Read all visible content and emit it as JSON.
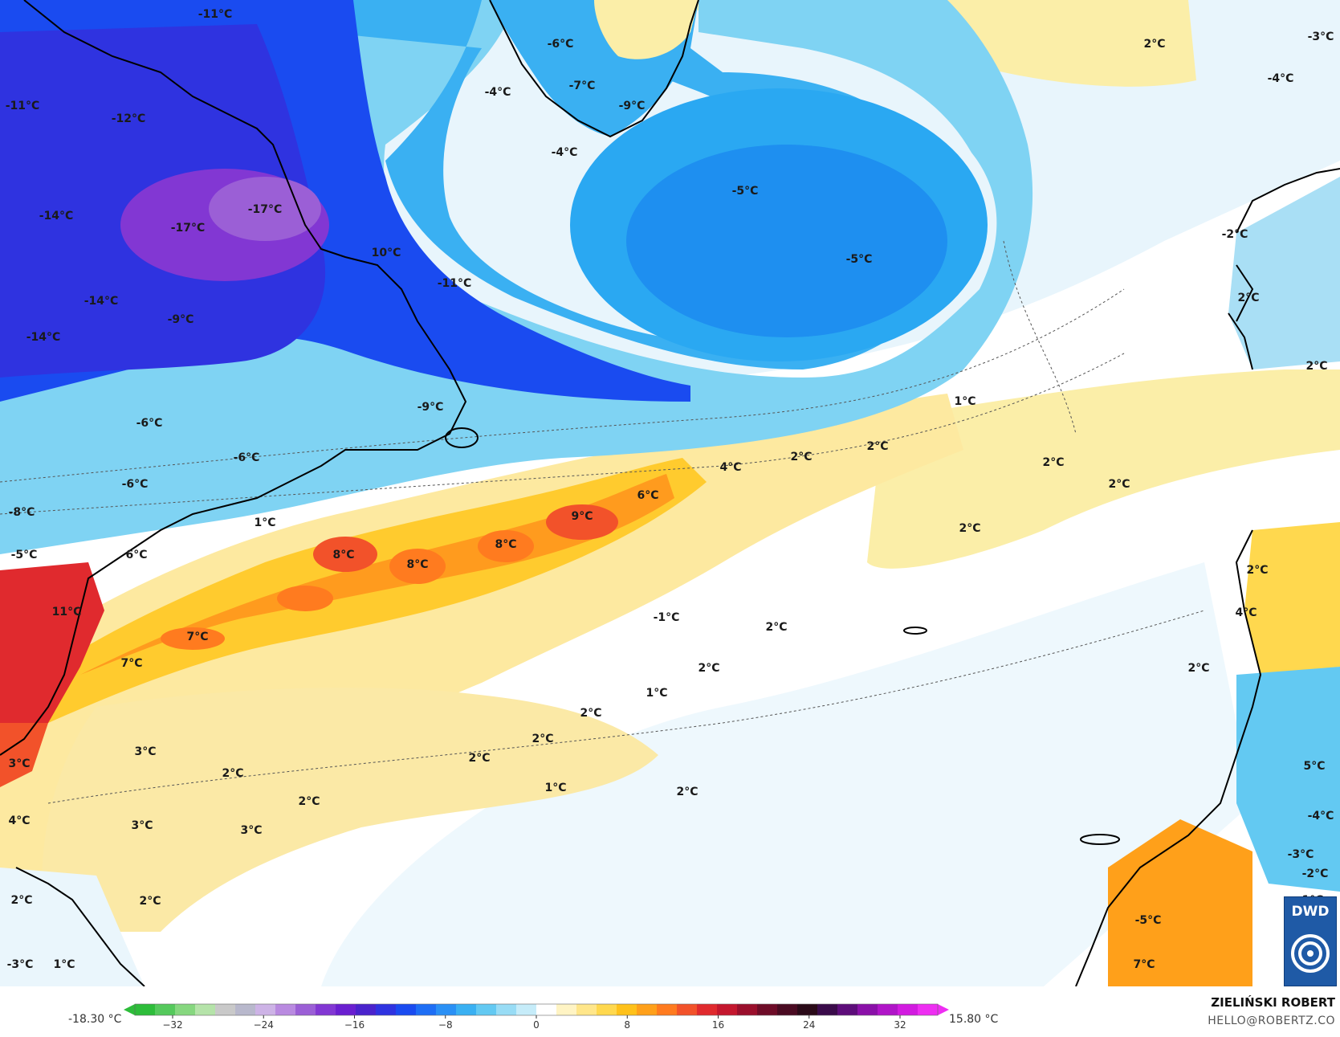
{
  "map": {
    "labels": [
      "-11°C",
      "-6°C",
      "-7°C",
      "-9°C",
      "-4°C",
      "-4°C",
      "-11°C",
      "-12°C",
      "-14°C",
      "-17°C",
      "-17°C",
      "-14°C",
      "-9°C",
      "-14°C",
      "10°C",
      "-11°C",
      "-5°C",
      "-5°C",
      "-2°C",
      "-3°C",
      "-4°C",
      "2°C",
      "2°C",
      "2°C",
      "-6°C",
      "-6°C",
      "-6°C",
      "-9°C",
      "-8°C",
      "-5°C",
      "1°C",
      "6°C",
      "11°C",
      "8°C",
      "8°C",
      "8°C",
      "9°C",
      "6°C",
      "4°C",
      "2°C",
      "2°C",
      "1°C",
      "2°C",
      "2°C",
      "2°C",
      "7°C",
      "7°C",
      "-1°C",
      "2°C",
      "2°C",
      "1°C",
      "2°C",
      "2°C",
      "2°C",
      "1°C",
      "2°C",
      "2°C",
      "3°C",
      "2°C",
      "3°C",
      "3°C",
      "3°C",
      "4°C",
      "2°C",
      "2°C",
      "2°C",
      "2°C",
      "4°C",
      "5°C",
      "-4°C",
      "-3°C",
      "-2°C",
      "-5°C",
      "7°C",
      "-3°C",
      "1°C",
      "1°C",
      "-3°C"
    ]
  },
  "colorbar": {
    "min_label": "-18.30 °C",
    "max_label": "15.80 °C",
    "ticks": [
      "−32",
      "−24",
      "−16",
      "−8",
      "0",
      "8",
      "16",
      "24",
      "32"
    ],
    "colors": [
      "#2dbd3a",
      "#55c95c",
      "#86d77f",
      "#b5e3a9",
      "#c9c9c9",
      "#b8b8cc",
      "#cdb3e6",
      "#b98ae0",
      "#9b5fd6",
      "#8237d3",
      "#6a1fd0",
      "#4a23cc",
      "#2f33e0",
      "#1a4bf0",
      "#1e6ef5",
      "#2a90f5",
      "#3ab0f2",
      "#63c9f2",
      "#98dcf5",
      "#c6ecf9",
      "#ffffff",
      "#fff4c4",
      "#ffe68a",
      "#ffd84e",
      "#ffc11a",
      "#ffa01a",
      "#ff7b1f",
      "#f2522a",
      "#e02a2e",
      "#c4172e",
      "#9a0f2c",
      "#6e0c28",
      "#4a0b22",
      "#2a0a18",
      "#3a0b4a",
      "#5d0d7a",
      "#8a10a8",
      "#b015c8",
      "#d21be0",
      "#ee2ef2"
    ]
  },
  "credit": {
    "name": "ZIELIŃSKI ROBERT",
    "email": "HELLO@ROBERTZ.CO"
  },
  "logo": {
    "text": "DWD"
  }
}
